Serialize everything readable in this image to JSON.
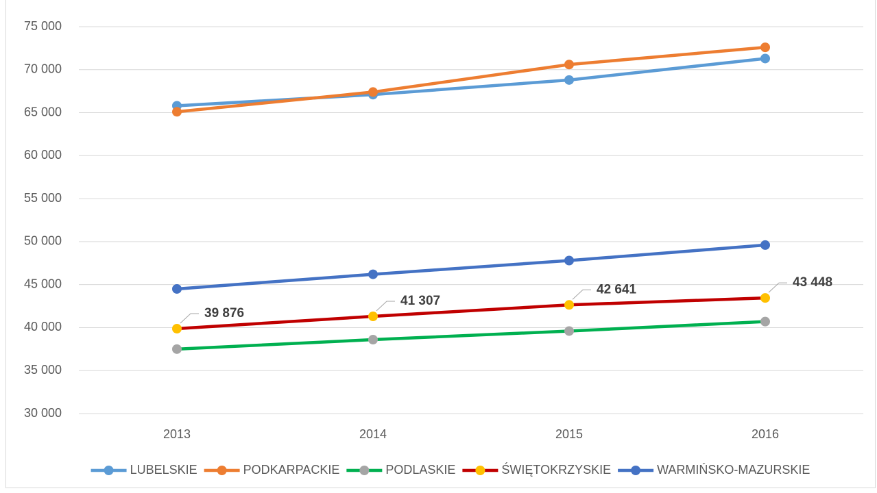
{
  "chart_data": {
    "type": "line",
    "categories": [
      "2013",
      "2014",
      "2015",
      "2016"
    ],
    "ylim": [
      30000,
      75000
    ],
    "yticks": [
      {
        "value": 30000,
        "label": "30 000"
      },
      {
        "value": 35000,
        "label": "35 000"
      },
      {
        "value": 40000,
        "label": "40 000"
      },
      {
        "value": 45000,
        "label": "45 000"
      },
      {
        "value": 50000,
        "label": "50 000"
      },
      {
        "value": 55000,
        "label": "55 000"
      },
      {
        "value": 60000,
        "label": "60 000"
      },
      {
        "value": 65000,
        "label": "65 000"
      },
      {
        "value": 70000,
        "label": "70 000"
      },
      {
        "value": 75000,
        "label": "75 000"
      }
    ],
    "grid": true,
    "legend": "bottom",
    "series": [
      {
        "name": "LUBELSKIE",
        "color": "#5b9bd5",
        "marker_color": "#5b9bd5",
        "values": [
          65800,
          67100,
          68800,
          71300
        ]
      },
      {
        "name": "PODKARPACKIE",
        "color": "#ed7d31",
        "marker_color": "#ed7d31",
        "values": [
          65100,
          67400,
          70600,
          72600
        ]
      },
      {
        "name": "PODLASKIE",
        "color": "#00b050",
        "marker_color": "#a5a5a5",
        "values": [
          37500,
          38600,
          39600,
          40700
        ]
      },
      {
        "name": "ŚWIĘTOKRZYSKIE",
        "color": "#c00000",
        "marker_color": "#ffc000",
        "values": [
          39876,
          41307,
          42641,
          43448
        ],
        "value_labels": [
          "39 876",
          "41 307",
          "42 641",
          "43 448"
        ]
      },
      {
        "name": "WARMIŃSKO-MAZURSKIE",
        "color": "#4472c4",
        "marker_color": "#4472c4",
        "values": [
          44500,
          46200,
          47800,
          49600
        ]
      }
    ]
  }
}
